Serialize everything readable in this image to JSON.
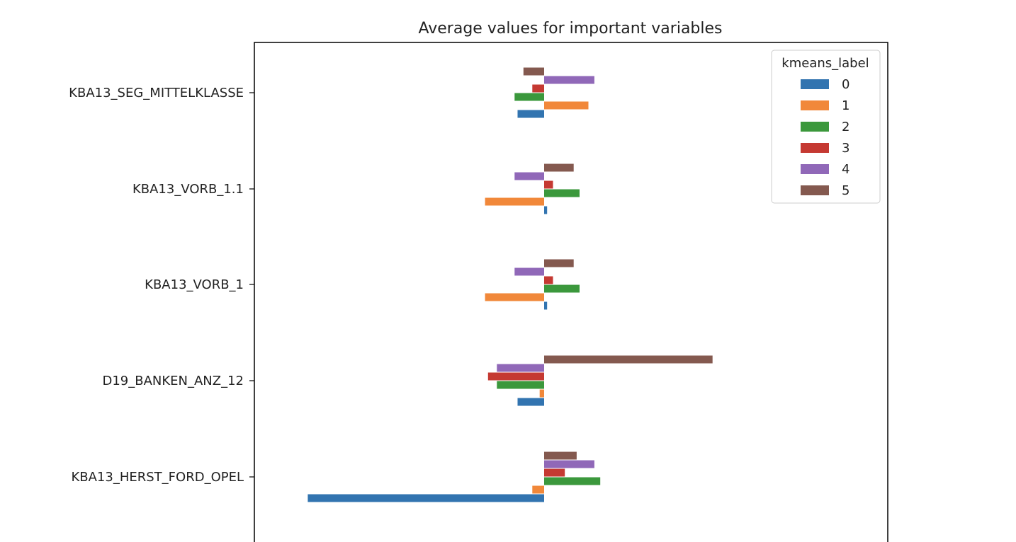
{
  "chart_data": {
    "type": "bar",
    "orientation": "horizontal",
    "title": "Average values for important variables",
    "categories": [
      "KBA13_SEG_MITTELKLASSE",
      "KBA13_VORB_1.1",
      "KBA13_VORB_1",
      "D19_BANKEN_ANZ_12",
      "KBA13_HERST_FORD_OPEL"
    ],
    "xlabel": "",
    "ylabel": "",
    "grid": false,
    "legend": {
      "title": "kmeans_label",
      "placement": "top-right"
    },
    "series": [
      {
        "name": "0",
        "color": "#3274b0",
        "values": [
          -0.09,
          0.01,
          0.01,
          -0.09,
          -0.8
        ]
      },
      {
        "name": "1",
        "color": "#f1883a",
        "values": [
          0.15,
          -0.2,
          -0.2,
          -0.015,
          -0.04
        ]
      },
      {
        "name": "2",
        "color": "#3b983c",
        "values": [
          -0.1,
          0.12,
          0.12,
          -0.16,
          0.19
        ]
      },
      {
        "name": "3",
        "color": "#c53932",
        "values": [
          -0.04,
          0.03,
          0.03,
          -0.19,
          0.07
        ]
      },
      {
        "name": "4",
        "color": "#9068b8",
        "values": [
          0.17,
          -0.1,
          -0.1,
          -0.16,
          0.17
        ]
      },
      {
        "name": "5",
        "color": "#84594f",
        "values": [
          -0.07,
          0.1,
          0.1,
          0.57,
          0.11
        ]
      }
    ]
  }
}
